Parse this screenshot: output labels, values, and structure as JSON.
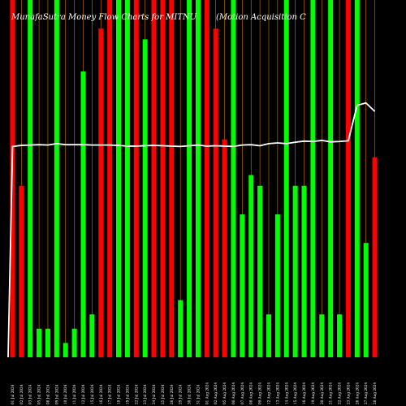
{
  "chart_data": {
    "type": "bar",
    "title": "MunafaSutra  Money Flow  Charts for MITNU",
    "subtitle": "(Motion  Acquisition  C",
    "xlabel": "",
    "ylabel": "",
    "ylim": [
      0,
      100
    ],
    "grid": true,
    "legend": "none",
    "colors": {
      "up": "#00ff00",
      "down": "#ff0000",
      "grid": "#cc7a00",
      "line": "#ffffff",
      "background": "#000000"
    },
    "categories": [
      "2024-07-01",
      "2024-07-02",
      "2024-07-03",
      "2024-07-05",
      "2024-07-08",
      "2024-07-09",
      "2024-07-10",
      "2024-07-11",
      "2024-07-12",
      "2024-07-15",
      "2024-07-16",
      "2024-07-17",
      "2024-07-18",
      "2024-07-19",
      "2024-07-22",
      "2024-07-23",
      "2024-07-24",
      "2024-07-25",
      "2024-07-26",
      "2024-07-29",
      "2024-07-30",
      "2024-07-31",
      "2024-08-01",
      "2024-08-02",
      "2024-08-05",
      "2024-08-06",
      "2024-08-07",
      "2024-08-08",
      "2024-08-09",
      "2024-08-12",
      "2024-08-13",
      "2024-08-14",
      "2024-08-15",
      "2024-08-16",
      "2024-08-19",
      "2024-08-20",
      "2024-08-21",
      "2024-08-22",
      "2024-08-23",
      "2024-08-26",
      "2024-08-27",
      "2024-08-28"
    ],
    "tick_labels": [
      "01 Jul 2024",
      "02 Jul 2024",
      "03 Jul 2024",
      "05 Jul 2024",
      "08 Jul 2024",
      "09 Jul 2024",
      "10 Jul 2024",
      "11 Jul 2024",
      "12 Jul 2024",
      "15 Jul 2024",
      "16 Jul 2024",
      "17 Jul 2024",
      "18 Jul 2024",
      "19 Jul 2024",
      "22 Jul 2024",
      "23 Jul 2024",
      "24 Jul 2024",
      "25 Jul 2024",
      "26 Jul 2024",
      "29 Jul 2024",
      "30 Jul 2024",
      "31 Jul 2024",
      "01 Aug 2024",
      "02 Aug 2024",
      "05 Aug 2024",
      "06 Aug 2024",
      "07 Aug 2024",
      "08 Aug 2024",
      "09 Aug 2024",
      "12 Aug 2024",
      "13 Aug 2024",
      "14 Aug 2024",
      "15 Aug 2024",
      "16 Aug 2024",
      "19 Aug 2024",
      "20 Aug 2024",
      "21 Aug 2024",
      "22 Aug 2024",
      "23 Aug 2024",
      "26 Aug 2024",
      "27 Aug 2024",
      "28 Aug 2024"
    ],
    "series": [
      {
        "values": [
          100,
          48,
          100,
          8,
          8,
          100,
          4,
          8,
          80,
          12,
          92,
          100,
          100,
          100,
          100,
          89,
          100,
          100,
          100,
          16,
          100,
          100,
          100,
          92,
          61,
          100,
          40,
          51,
          48,
          12,
          40,
          100,
          48,
          48,
          100,
          12,
          100,
          12,
          100,
          100,
          32,
          56
        ],
        "direction": [
          "down",
          "down",
          "up",
          "up",
          "up",
          "up",
          "up",
          "up",
          "up",
          "up",
          "down",
          "down",
          "up",
          "up",
          "down",
          "up",
          "down",
          "down",
          "down",
          "up",
          "up",
          "up",
          "down",
          "down",
          "down",
          "up",
          "up",
          "up",
          "up",
          "up",
          "up",
          "up",
          "up",
          "up",
          "up",
          "up",
          "up",
          "up",
          "down",
          "up",
          "up",
          "down"
        ]
      },
      {
        "name": "",
        "type": "line",
        "values": [
          59,
          59.3,
          59.4,
          59.5,
          59.4,
          59.8,
          59.5,
          59.5,
          59.5,
          59.4,
          59.4,
          59.4,
          59.3,
          59.1,
          59.1,
          59.2,
          59.3,
          59.2,
          59.1,
          59.0,
          59.2,
          59.4,
          59.1,
          59.2,
          59.1,
          59.0,
          59.4,
          59.5,
          59.2,
          59.8,
          60.0,
          59.8,
          60.2,
          60.5,
          60.4,
          60.7,
          60.3,
          60.4,
          60.6,
          70.5,
          71.2,
          68.8
        ]
      }
    ]
  }
}
